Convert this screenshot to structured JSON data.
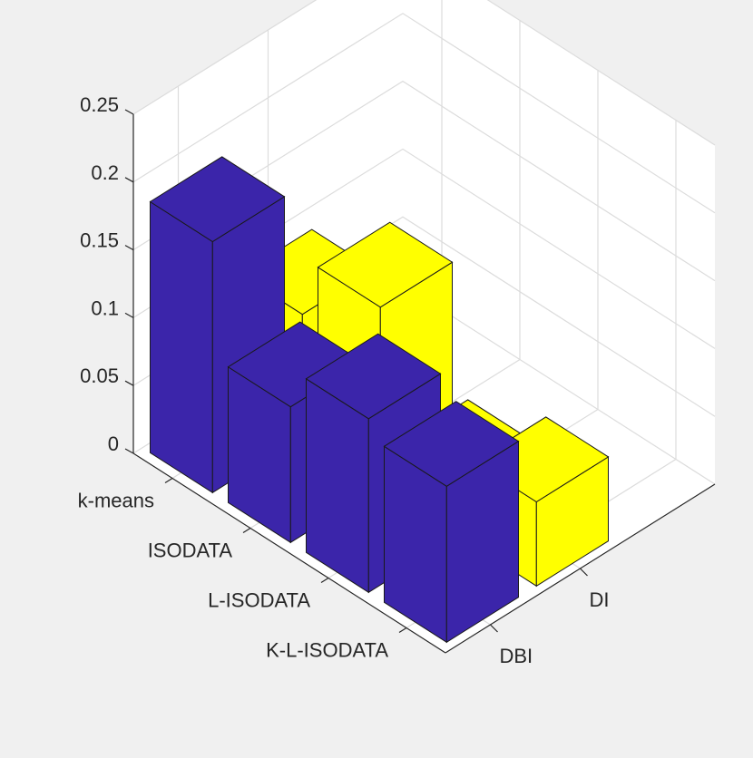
{
  "chart_data": {
    "type": "bar3d",
    "title": "",
    "methods": [
      "k-means",
      "ISODATA",
      "L-ISODATA",
      "K-L-ISODATA"
    ],
    "metrics": [
      "DBI",
      "DI"
    ],
    "series": [
      {
        "name": "DBI",
        "color": "#3b25aa",
        "values": [
          0.185,
          0.1,
          0.128,
          0.115
        ]
      },
      {
        "name": "DI",
        "color": "#ffff00",
        "values": [
          0.09,
          0.132,
          0.038,
          0.062
        ]
      }
    ],
    "zlim": [
      0,
      0.25
    ],
    "z_ticks": [
      0,
      0.05,
      0.1,
      0.15,
      0.2,
      0.25
    ],
    "z_tick_labels": [
      "0",
      "0.05",
      "0.1",
      "0.15",
      "0.2",
      "0.25"
    ],
    "grid": true
  }
}
